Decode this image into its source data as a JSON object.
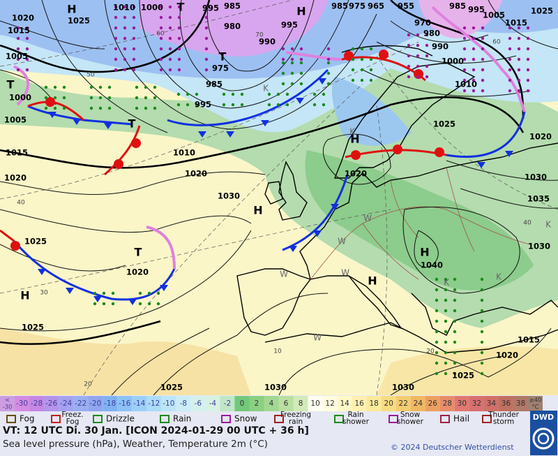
{
  "map_labels": [
    "H",
    1010,
    1000,
    "T",
    995,
    985,
    "H",
    985,
    975,
    965,
    955,
    985,
    995,
    1005,
    1025,
    1020,
    1025,
    1015,
    980,
    995,
    970,
    1015,
    980,
    990,
    990,
    1005,
    "T",
    975,
    1000,
    985,
    1010,
    "T",
    1000,
    995,
    1005,
    1025,
    "T",
    "H",
    1020,
    1015,
    1010,
    1020,
    1020,
    1020,
    1030,
    1030,
    1035,
    "H",
    1025,
    1030,
    "H",
    "T",
    1040,
    1020,
    "H",
    "H",
    1025,
    1015,
    1020,
    1025,
    1025,
    1030,
    1030
  ],
  "contour_labels": [
    50,
    60,
    70,
    60,
    40,
    30,
    20,
    20,
    10,
    40
  ],
  "airmass_labels": [
    "K",
    "W",
    "W",
    "W",
    "W",
    "K",
    "K",
    "K",
    "W",
    "K"
  ],
  "colorbar": {
    "low": [
      "<",
      "-30"
    ],
    "labels": [
      -30,
      -28,
      -26,
      -24,
      -22,
      -20,
      -18,
      -16,
      -14,
      -12,
      -10,
      -8,
      -6,
      -4,
      -2,
      0,
      2,
      4,
      6,
      8,
      10,
      12,
      14,
      16,
      18,
      20,
      22,
      24,
      26,
      28,
      30,
      32,
      34,
      36,
      38
    ],
    "high": [
      "≥40",
      "°C"
    ],
    "colors": [
      "#cc9ee0",
      "#d48ce2",
      "#c488e4",
      "#b494ea",
      "#a4a2f0",
      "#9aaef0",
      "#90a6ee",
      "#80b2f2",
      "#8cc2f8",
      "#9ccff8",
      "#acdcf8",
      "#bce5f8",
      "#cbedf6",
      "#d4f1ee",
      "#d8f2e2",
      "#bfe6c6",
      "#72c87a",
      "#8ad082",
      "#a2d892",
      "#badfa2",
      "#d2eab8",
      "#fffff2",
      "#fffce0",
      "#fff8c8",
      "#fff0b0",
      "#faea9a",
      "#f8dc82",
      "#f4cc70",
      "#f0b860",
      "#eca060",
      "#e88c68",
      "#e07870",
      "#d87070",
      "#d07068",
      "#c07060",
      "#b07868",
      "#a08070"
    ]
  },
  "legend": [
    [
      "Fog"
    ],
    [
      "Freez.",
      "Fog"
    ],
    [
      "Drizzle"
    ],
    [
      "Rain"
    ],
    [
      "Snow"
    ],
    [
      "Freezing",
      "rain"
    ],
    [
      "Rain",
      "shower"
    ],
    [
      "Snow",
      "shower"
    ],
    [
      "Hail"
    ],
    [
      "Thunder",
      "storm"
    ]
  ],
  "footer": {
    "valid_time": "VT: 12 UTC Di.  30 Jan. [ICON 2024-01-29  00 UTC + 36 h]",
    "parameters": "Sea level pressure (hPa), Weather, Temperature 2m (°C)",
    "copyright": "© 2024 Deutscher Wetterdienst",
    "logo": "DWD"
  }
}
